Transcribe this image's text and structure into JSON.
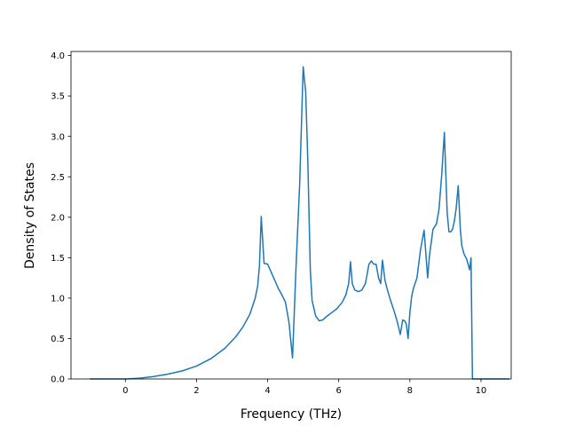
{
  "chart_data": {
    "type": "line",
    "title": "",
    "xlabel": "Frequency (THz)",
    "ylabel": "Density of States",
    "xlim": [
      -1.53,
      10.85
    ],
    "ylim": [
      0,
      4.05
    ],
    "xticks": [
      0,
      2,
      4,
      6,
      8,
      10
    ],
    "yticks": [
      0.0,
      0.5,
      1.0,
      1.5,
      2.0,
      2.5,
      3.0,
      3.5,
      4.0
    ],
    "ytick_labels": [
      "0.0",
      "0.5",
      "1.0",
      "1.5",
      "2.0",
      "2.5",
      "3.0",
      "3.5",
      "4.0"
    ],
    "grid": false,
    "colors": {
      "line": "#1f77b4"
    },
    "series": [
      {
        "x": [
          -1.0,
          0.0,
          0.4,
          0.8,
          1.2,
          1.6,
          2.0,
          2.4,
          2.8,
          3.1,
          3.3,
          3.5,
          3.65,
          3.72,
          3.77,
          3.82,
          3.9,
          4.0,
          4.1,
          4.2,
          4.3,
          4.4,
          4.5,
          4.6,
          4.7,
          4.8,
          4.9,
          5.0,
          5.07,
          5.13,
          5.2,
          5.25,
          5.35,
          5.45,
          5.55,
          5.65,
          5.8,
          5.95,
          6.1,
          6.2,
          6.28,
          6.33,
          6.38,
          6.45,
          6.55,
          6.65,
          6.75,
          6.85,
          6.92,
          6.98,
          7.05,
          7.12,
          7.18,
          7.23,
          7.3,
          7.37,
          7.45,
          7.55,
          7.65,
          7.73,
          7.8,
          7.85,
          7.9,
          7.95,
          8.0,
          8.05,
          8.1,
          8.2,
          8.3,
          8.4,
          8.45,
          8.5,
          8.55,
          8.65,
          8.75,
          8.82,
          8.9,
          8.97,
          9.05,
          9.1,
          9.15,
          9.2,
          9.25,
          9.3,
          9.36,
          9.42,
          9.46,
          9.52,
          9.6,
          9.68,
          9.72,
          9.76,
          9.8,
          10.0,
          10.8
        ],
        "y": [
          0.0,
          0.0,
          0.01,
          0.03,
          0.06,
          0.1,
          0.16,
          0.25,
          0.38,
          0.52,
          0.64,
          0.8,
          1.0,
          1.15,
          1.4,
          2.01,
          1.43,
          1.42,
          1.32,
          1.22,
          1.12,
          1.04,
          0.95,
          0.7,
          0.26,
          1.4,
          2.4,
          3.86,
          3.55,
          2.7,
          1.35,
          0.97,
          0.78,
          0.72,
          0.73,
          0.77,
          0.82,
          0.87,
          0.95,
          1.04,
          1.18,
          1.45,
          1.18,
          1.1,
          1.08,
          1.1,
          1.18,
          1.42,
          1.46,
          1.42,
          1.42,
          1.25,
          1.18,
          1.47,
          1.22,
          1.1,
          0.98,
          0.85,
          0.7,
          0.55,
          0.73,
          0.72,
          0.68,
          0.5,
          0.82,
          1.02,
          1.12,
          1.25,
          1.6,
          1.84,
          1.55,
          1.25,
          1.52,
          1.85,
          1.92,
          2.1,
          2.55,
          3.05,
          2.05,
          1.82,
          1.82,
          1.85,
          1.95,
          2.1,
          2.39,
          1.85,
          1.65,
          1.55,
          1.48,
          1.35,
          1.5,
          0.0,
          0.0,
          0.0,
          0.0
        ]
      }
    ]
  }
}
